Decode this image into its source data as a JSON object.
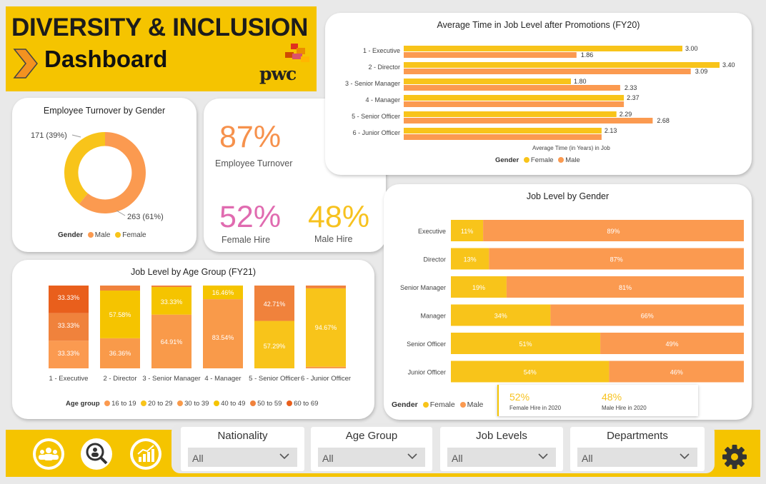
{
  "header": {
    "title_line1": "DIVERSITY & INCLUSION",
    "title_line2": "Dashboard",
    "brand": "pwc"
  },
  "turnover_gender": {
    "title": "Employee Turnover by Gender",
    "female_label": "171 (39%)",
    "male_label": "263 (61%)",
    "legend_title": "Gender",
    "legend": [
      "Male",
      "Female"
    ]
  },
  "kpis": {
    "turnover_value": "87%",
    "turnover_label": "Employee Turnover",
    "female_hire_value": "52%",
    "female_hire_label": "Female Hire",
    "male_hire_value": "48%",
    "male_hire_label": "Male Hire"
  },
  "time_in_level": {
    "title": "Average Time in Job Level after Promotions (FY20)",
    "xlabel": "Average Time (in Years) in Job",
    "legend_title": "Gender",
    "legend": [
      "Female",
      "Male"
    ]
  },
  "age_group": {
    "title": "Job Level by Age Group (FY21)",
    "legend_title": "Age group",
    "legend": [
      "16 to 19",
      "20 to 29",
      "30 to 39",
      "40 to 49",
      "50 to 59",
      "60 to 69"
    ]
  },
  "job_gender": {
    "title": "Job Level by Gender",
    "legend_title": "Gender",
    "legend": [
      "Female",
      "Male"
    ],
    "tooltip": {
      "female_value": "52%",
      "female_label": "Female Hire in 2020",
      "male_value": "48%",
      "male_label": "Male Hire in 2020"
    }
  },
  "slicers": [
    {
      "label": "Nationality",
      "value": "All"
    },
    {
      "label": "Age Group",
      "value": "All"
    },
    {
      "label": "Job Levels",
      "value": "All"
    },
    {
      "label": "Departments",
      "value": "All"
    }
  ],
  "footer_icons": [
    "people-icon",
    "search-people-icon",
    "growth-chart-icon",
    "gear-icon"
  ],
  "colors": {
    "yellow": "#f5c400",
    "female": "#f8c41a",
    "male": "#fb9a50",
    "pink": "#e06bb0",
    "orange_kpi": "#f6914c",
    "yellow_kpi": "#f7c21f",
    "dark_orange": "#e95f1c",
    "mid_orange": "#f0823c"
  },
  "chart_data": [
    {
      "type": "pie",
      "title": "Employee Turnover by Gender",
      "categories": [
        "Male",
        "Female"
      ],
      "values": [
        263,
        171
      ],
      "labels": [
        "263 (61%)",
        "171 (39%)"
      ]
    },
    {
      "type": "bar",
      "orientation": "horizontal",
      "title": "Average Time in Job Level after Promotions (FY20)",
      "categories": [
        "1 - Executive",
        "2 - Director",
        "3 - Senior Manager",
        "4 - Manager",
        "5 - Senior Officer",
        "6 - Junior Officer"
      ],
      "series": [
        {
          "name": "Female",
          "values": [
            3.0,
            3.4,
            1.8,
            2.37,
            2.29,
            2.13
          ],
          "labels": [
            "3.00",
            "3.40",
            "1.80",
            "2.37",
            "2.29",
            "2.13"
          ]
        },
        {
          "name": "Male",
          "values": [
            1.86,
            3.09,
            2.33,
            2.37,
            2.68,
            2.13
          ],
          "labels": [
            "1.86",
            "3.09",
            "2.33",
            "",
            "2.68",
            ""
          ]
        }
      ],
      "xlabel": "Average Time (in Years) in Job",
      "xlim": [
        0,
        3.5
      ]
    },
    {
      "type": "bar",
      "stacked": "100%",
      "title": "Job Level by Age Group (FY21)",
      "categories": [
        "1 - Executive",
        "2 - Director",
        "3 - Senior Manager",
        "4 - Manager",
        "5 - Senior Officer",
        "6 - Junior Officer"
      ],
      "series": [
        {
          "name": "16 to 19",
          "values": [
            0,
            0,
            0,
            0,
            0,
            0
          ]
        },
        {
          "name": "20 to 29",
          "values": [
            0,
            0,
            0,
            0,
            57.29,
            94.67
          ]
        },
        {
          "name": "30 to 39",
          "values": [
            33.33,
            36.36,
            64.91,
            83.54,
            0,
            2.0
          ]
        },
        {
          "name": "40 to 49",
          "values": [
            0,
            57.58,
            33.33,
            16.46,
            0,
            0
          ]
        },
        {
          "name": "50 to 59",
          "values": [
            33.33,
            6.06,
            1.76,
            0,
            42.71,
            3.33
          ]
        },
        {
          "name": "60 to 69",
          "values": [
            33.33,
            0,
            0,
            0,
            0,
            0
          ]
        }
      ],
      "labels": [
        [
          "",
          "",
          "33.33%",
          "",
          "33.33%",
          "33.33%"
        ],
        [
          "",
          "",
          "36.36%",
          "57.58%",
          "",
          ""
        ],
        [
          "",
          "",
          "64.91%",
          "33.33%",
          "",
          ""
        ],
        [
          "",
          "",
          "83.54%",
          "16.46%",
          "",
          ""
        ],
        [
          "",
          "57.29%",
          "",
          "",
          "42.71%",
          ""
        ],
        [
          "",
          "94.67%",
          "",
          "",
          "",
          ""
        ]
      ]
    },
    {
      "type": "bar",
      "orientation": "horizontal",
      "stacked": "100%",
      "title": "Job Level by Gender",
      "categories": [
        "Executive",
        "Director",
        "Senior Manager",
        "Manager",
        "Senior Officer",
        "Junior Officer"
      ],
      "series": [
        {
          "name": "Female",
          "values": [
            11,
            13,
            19,
            34,
            51,
            54
          ]
        },
        {
          "name": "Male",
          "values": [
            89,
            87,
            81,
            66,
            49,
            46
          ]
        }
      ]
    }
  ]
}
